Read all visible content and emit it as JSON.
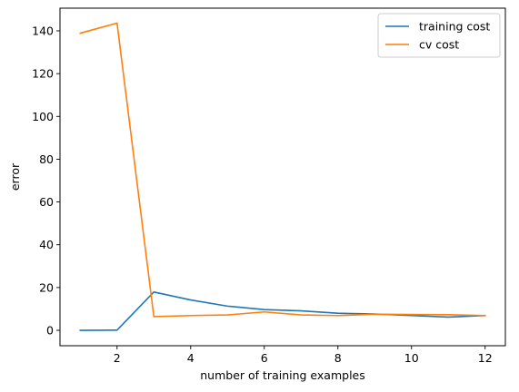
{
  "chart_data": {
    "type": "line",
    "title": "",
    "xlabel": "number of training examples",
    "ylabel": "error",
    "xlim": [
      0.45,
      12.55
    ],
    "ylim": [
      -7.2,
      150.6
    ],
    "x_ticks": [
      2,
      4,
      6,
      8,
      10,
      12
    ],
    "y_ticks": [
      0,
      20,
      40,
      60,
      80,
      100,
      120,
      140
    ],
    "grid": false,
    "legend_position": "top-right",
    "x": [
      1,
      2,
      3,
      4,
      5,
      6,
      7,
      8,
      9,
      10,
      11,
      12
    ],
    "series": [
      {
        "name": "training cost",
        "color": "#1f77b4",
        "values": [
          0.0,
          0.1,
          17.9,
          14.2,
          11.3,
          9.7,
          9.1,
          8.0,
          7.6,
          6.9,
          6.2,
          6.9
        ]
      },
      {
        "name": "cv cost",
        "color": "#ff7f0e",
        "values": [
          138.9,
          143.6,
          6.4,
          6.9,
          7.2,
          8.6,
          7.2,
          6.9,
          7.5,
          7.4,
          7.3,
          6.9
        ]
      }
    ]
  }
}
